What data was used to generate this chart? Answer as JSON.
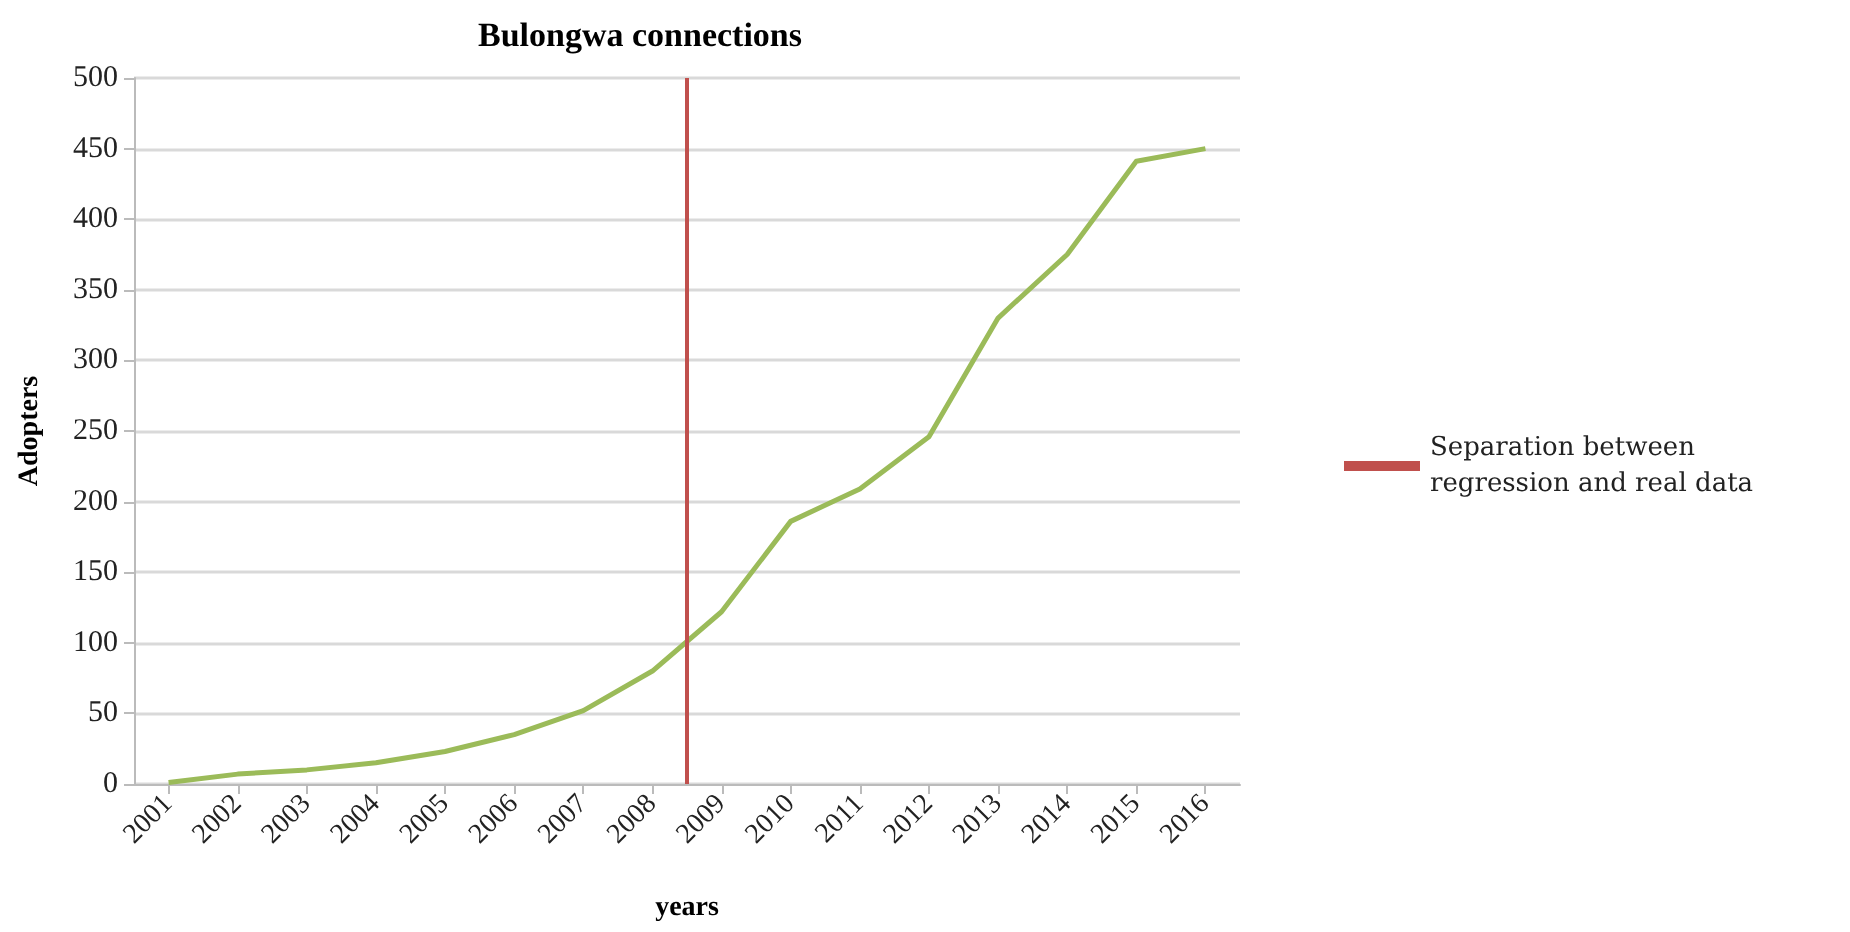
{
  "chart_data": {
    "type": "line",
    "title": "Bulongwa connections",
    "xlabel": "years",
    "ylabel": "Adopters",
    "x": [
      2001,
      2002,
      2003,
      2004,
      2005,
      2006,
      2007,
      2008,
      2009,
      2010,
      2011,
      2012,
      2013,
      2014,
      2015,
      2016
    ],
    "series": [
      {
        "color": "#9bbb59",
        "values": [
          1,
          7,
          10,
          15,
          23,
          35,
          52,
          80,
          122,
          186,
          209,
          246,
          330,
          375,
          441,
          450
        ]
      },
      {
        "name": "Separation between regression and real data",
        "color": "#c0504d",
        "x": [
          2008.5,
          2008.5
        ],
        "values": [
          0,
          500
        ]
      }
    ],
    "xlim": [
      2000.5,
      2016.5
    ],
    "xticks": [
      2001,
      2002,
      2003,
      2004,
      2005,
      2006,
      2007,
      2008,
      2009,
      2010,
      2011,
      2012,
      2013,
      2014,
      2015,
      2016
    ],
    "ylim": [
      0,
      500
    ],
    "yticks": [
      0,
      50,
      100,
      150,
      200,
      250,
      300,
      350,
      400,
      450,
      500
    ],
    "grid": "y",
    "legend": "right",
    "marker": "none",
    "line_style": "solid"
  }
}
